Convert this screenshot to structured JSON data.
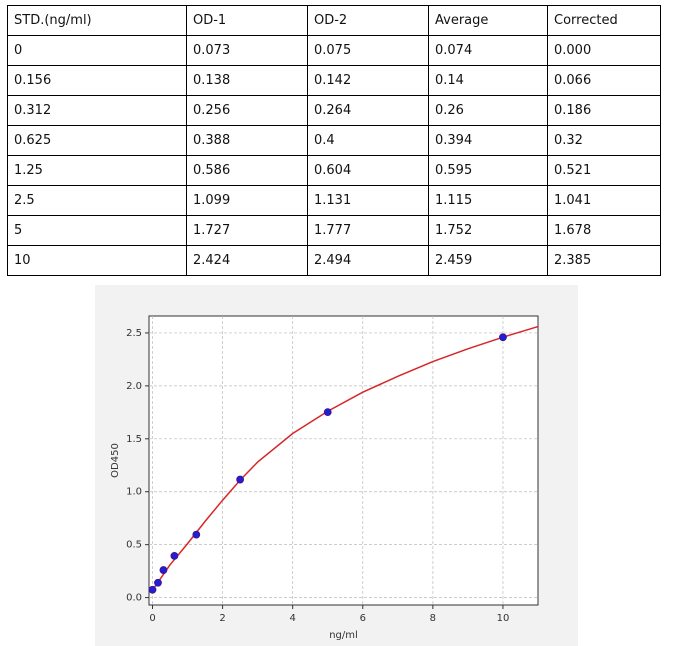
{
  "table": {
    "header": [
      "STD.(ng/ml)",
      "OD-1",
      "OD-2",
      "Average",
      "Corrected"
    ],
    "rows": [
      [
        "0",
        "0.073",
        "0.075",
        "0.074",
        "0.000"
      ],
      [
        "0.156",
        "0.138",
        "0.142",
        "0.14",
        "0.066"
      ],
      [
        "0.312",
        "0.256",
        "0.264",
        "0.26",
        "0.186"
      ],
      [
        "0.625",
        "0.388",
        "0.4",
        "0.394",
        "0.32"
      ],
      [
        "1.25",
        "0.586",
        "0.604",
        "0.595",
        "0.521"
      ],
      [
        "2.5",
        "1.099",
        "1.131",
        "1.115",
        "1.041"
      ],
      [
        "5",
        "1.727",
        "1.777",
        "1.752",
        "1.678"
      ],
      [
        "10",
        "2.424",
        "2.494",
        "2.459",
        "2.385"
      ]
    ]
  },
  "chart_data": {
    "type": "scatter",
    "xlabel": "ng/ml",
    "ylabel": "OD450",
    "series": [
      {
        "mode": "line",
        "color": "#d62728",
        "x": [
          0,
          0.5,
          1,
          1.5,
          2,
          2.5,
          3,
          4,
          5,
          6,
          7,
          8,
          9,
          10,
          11
        ],
        "values": [
          0.07,
          0.31,
          0.51,
          0.72,
          0.92,
          1.11,
          1.28,
          1.55,
          1.76,
          1.94,
          2.09,
          2.23,
          2.35,
          2.46,
          2.56
        ]
      },
      {
        "mode": "markers",
        "color": "#1f1fd6",
        "x": [
          0,
          0.156,
          0.312,
          0.625,
          1.25,
          2.5,
          5,
          10
        ],
        "values": [
          0.074,
          0.14,
          0.26,
          0.394,
          0.595,
          1.115,
          1.752,
          2.459
        ]
      }
    ],
    "xlim": [
      -0.1,
      11
    ],
    "ylim": [
      -0.07,
      2.66
    ],
    "xticks": [
      0,
      2,
      4,
      6,
      8,
      10
    ],
    "yticks": [
      {
        "value": 0,
        "label": "0.0"
      },
      {
        "value": 0.5,
        "label": "0.5"
      },
      {
        "value": 1,
        "label": "1.0"
      },
      {
        "value": 1.5,
        "label": "1.5"
      },
      {
        "value": 2,
        "label": "2.0"
      },
      {
        "value": 2.5,
        "label": "2.5"
      }
    ],
    "grid": true
  }
}
